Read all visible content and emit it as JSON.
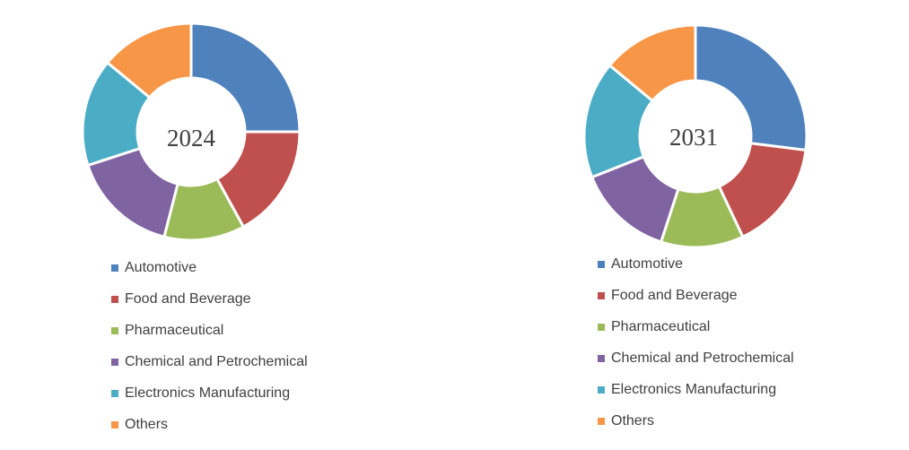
{
  "chart_data": [
    {
      "type": "pie",
      "variant": "donut",
      "center_label": "2024",
      "categories": [
        "Automotive",
        "Food and Beverage",
        "Pharmaceutical",
        "Chemical and Petrochemical",
        "Electronics Manufacturing",
        "Others"
      ],
      "values": [
        25,
        17,
        12,
        16,
        16,
        14
      ],
      "legend_position": "bottom"
    },
    {
      "type": "pie",
      "variant": "donut",
      "center_label": "2031",
      "categories": [
        "Automotive",
        "Food and Beverage",
        "Pharmaceutical",
        "Chemical and Petrochemical",
        "Electronics Manufacturing",
        "Others"
      ],
      "values": [
        27,
        16,
        12,
        14,
        17,
        14
      ],
      "legend_position": "bottom"
    }
  ],
  "colors": [
    "#4F81BD",
    "#C0504D",
    "#9BBB59",
    "#8064A2",
    "#4BACC6",
    "#F79646"
  ]
}
